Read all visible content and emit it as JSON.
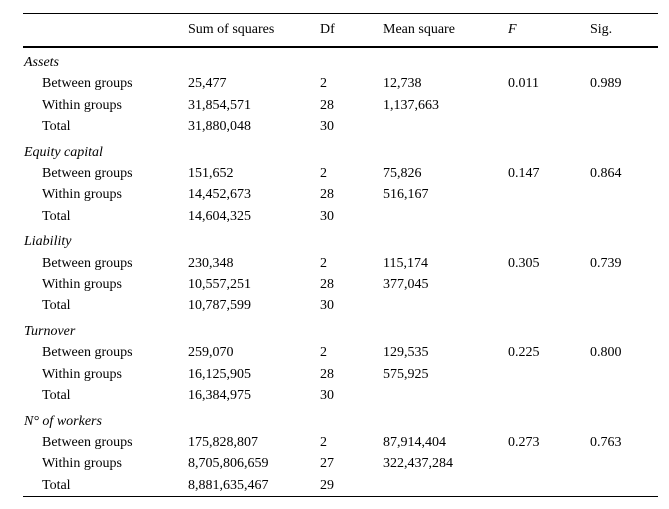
{
  "table": {
    "columns": [
      "Sum of squares",
      "Df",
      "Mean square",
      "F",
      "Sig."
    ],
    "column_keys": [
      "label",
      "sum_of_squares",
      "df",
      "mean_square",
      "f",
      "sig"
    ],
    "text_color": "#000000",
    "background_color": "#ffffff",
    "sections": [
      {
        "name": "Assets",
        "rows": [
          {
            "label": "Between groups",
            "sum_of_squares": "25,477",
            "df": "2",
            "mean_square": "12,738",
            "f": "0.011",
            "sig": "0.989"
          },
          {
            "label": "Within groups",
            "sum_of_squares": "31,854,571",
            "df": "28",
            "mean_square": "1,137,663",
            "f": "",
            "sig": ""
          },
          {
            "label": "Total",
            "sum_of_squares": "31,880,048",
            "df": "30",
            "mean_square": "",
            "f": "",
            "sig": ""
          }
        ]
      },
      {
        "name": "Equity capital",
        "rows": [
          {
            "label": "Between groups",
            "sum_of_squares": "151,652",
            "df": "2",
            "mean_square": "75,826",
            "f": "0.147",
            "sig": "0.864"
          },
          {
            "label": "Within groups",
            "sum_of_squares": "14,452,673",
            "df": "28",
            "mean_square": "516,167",
            "f": "",
            "sig": ""
          },
          {
            "label": "Total",
            "sum_of_squares": "14,604,325",
            "df": "30",
            "mean_square": "",
            "f": "",
            "sig": ""
          }
        ]
      },
      {
        "name": "Liability",
        "rows": [
          {
            "label": "Between groups",
            "sum_of_squares": "230,348",
            "df": "2",
            "mean_square": "115,174",
            "f": "0.305",
            "sig": "0.739"
          },
          {
            "label": "Within groups",
            "sum_of_squares": "10,557,251",
            "df": "28",
            "mean_square": "377,045",
            "f": "",
            "sig": ""
          },
          {
            "label": "Total",
            "sum_of_squares": "10,787,599",
            "df": "30",
            "mean_square": "",
            "f": "",
            "sig": ""
          }
        ]
      },
      {
        "name": "Turnover",
        "rows": [
          {
            "label": "Between groups",
            "sum_of_squares": "259,070",
            "df": "2",
            "mean_square": "129,535",
            "f": "0.225",
            "sig": "0.800"
          },
          {
            "label": "Within groups",
            "sum_of_squares": "16,125,905",
            "df": "28",
            "mean_square": "575,925",
            "f": "",
            "sig": ""
          },
          {
            "label": "Total",
            "sum_of_squares": "16,384,975",
            "df": "30",
            "mean_square": "",
            "f": "",
            "sig": ""
          }
        ]
      },
      {
        "name": "N° of workers",
        "rows": [
          {
            "label": "Between groups",
            "sum_of_squares": "175,828,807",
            "df": "2",
            "mean_square": "87,914,404",
            "f": "0.273",
            "sig": "0.763"
          },
          {
            "label": "Within groups",
            "sum_of_squares": "8,705,806,659",
            "df": "27",
            "mean_square": "322,437,284",
            "f": "",
            "sig": ""
          },
          {
            "label": "Total",
            "sum_of_squares": "8,881,635,467",
            "df": "29",
            "mean_square": "",
            "f": "",
            "sig": ""
          }
        ]
      }
    ]
  }
}
